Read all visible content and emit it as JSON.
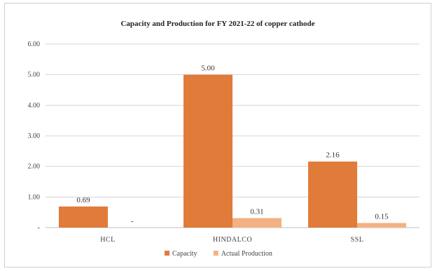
{
  "chart_data": {
    "type": "bar",
    "title": "Capacity and Production for FY 2021-22 of copper cathode",
    "categories": [
      "HCL",
      "HINDALCO",
      "SSL"
    ],
    "series": [
      {
        "name": "Capacity",
        "color": "#e07b39",
        "values": [
          0.69,
          5.0,
          2.16
        ],
        "labels": [
          "0.69",
          "5.00",
          "2.16"
        ]
      },
      {
        "name": "Actual Production",
        "color": "#f4b183",
        "values": [
          0,
          0.31,
          0.15
        ],
        "labels": [
          "-",
          "0.31",
          "0.15"
        ]
      }
    ],
    "ylim": [
      0,
      6
    ],
    "yticks": [
      {
        "value": 0,
        "label": "-"
      },
      {
        "value": 1,
        "label": "1.00"
      },
      {
        "value": 2,
        "label": "2.00"
      },
      {
        "value": 3,
        "label": "3.00"
      },
      {
        "value": 4,
        "label": "4.00"
      },
      {
        "value": 5,
        "label": "5.00"
      },
      {
        "value": 6,
        "label": "6.00"
      }
    ],
    "grid": true,
    "legend_position": "bottom"
  }
}
